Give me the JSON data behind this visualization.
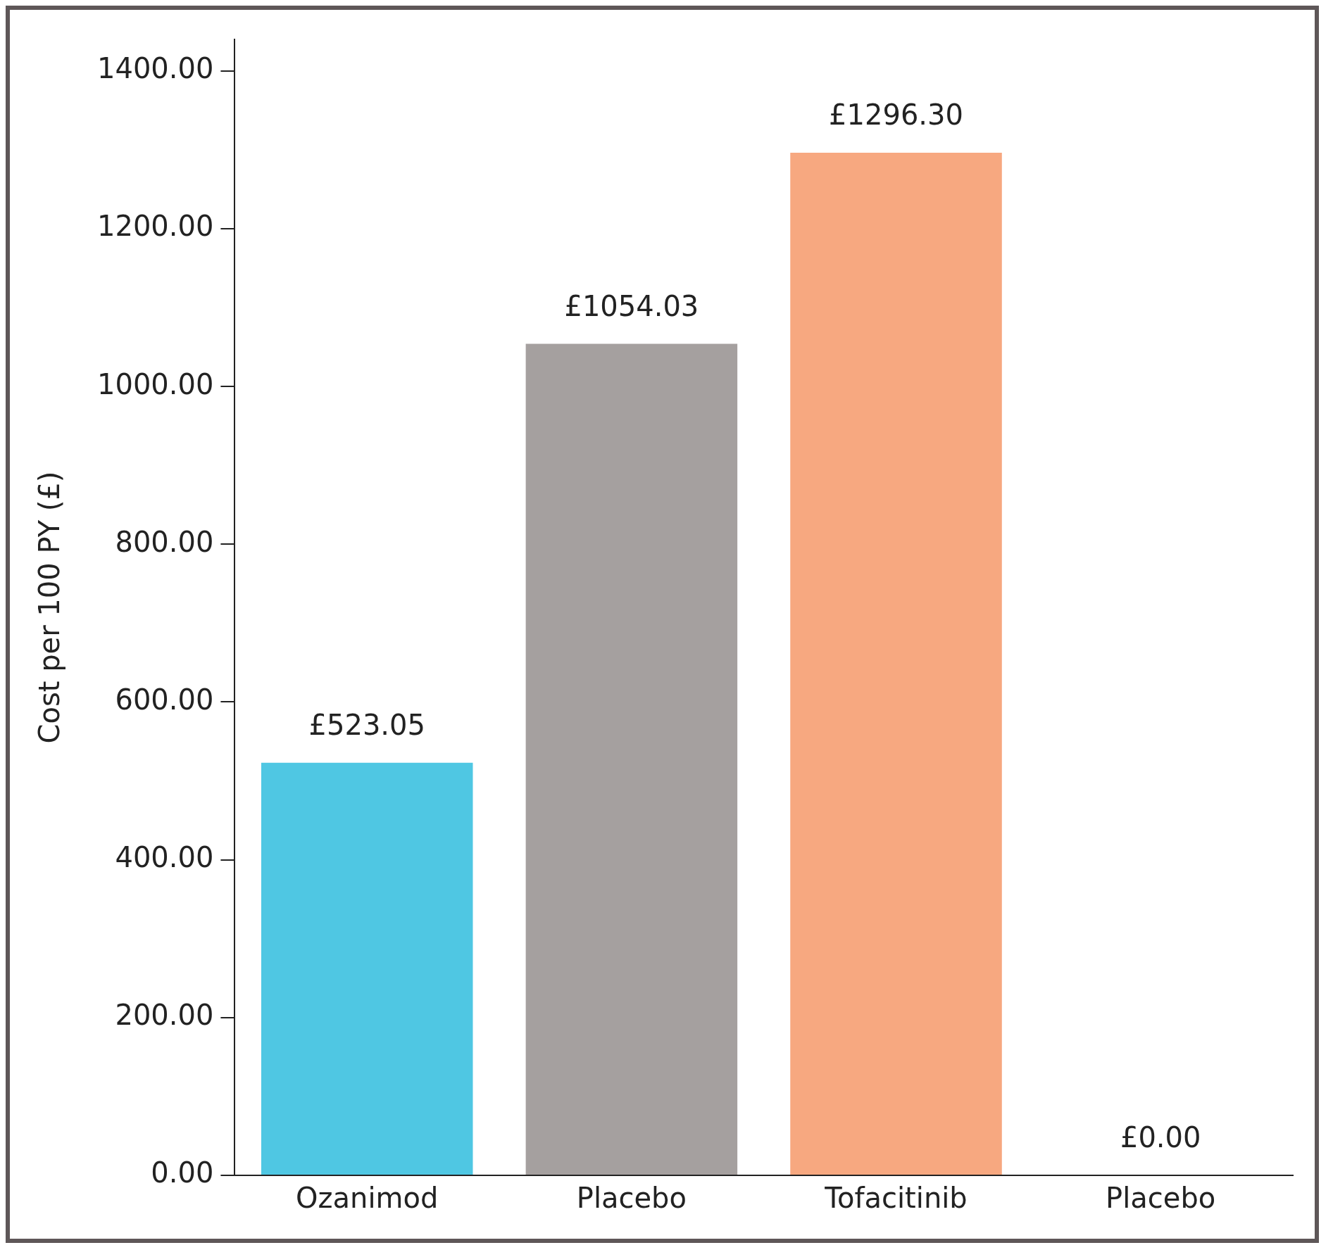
{
  "chart_data": {
    "type": "bar",
    "ylabel": "Cost per 100 PY (£)",
    "categories": [
      "Ozanimod",
      "Placebo",
      "Tofacitinib",
      "Placebo"
    ],
    "values": [
      523.05,
      1054.03,
      1296.3,
      0
    ],
    "colors": [
      "#4fc7e3",
      "#a5a09f",
      "#f7a880",
      "#a5a09f"
    ],
    "value_labels": [
      "£523.05",
      "£1054.03",
      "£1296.30",
      "£0.00"
    ],
    "ylim": [
      0,
      1440
    ],
    "yticks": [
      {
        "value": 0,
        "label": "0.00"
      },
      {
        "value": 200,
        "label": "200.00"
      },
      {
        "value": 400,
        "label": "400.00"
      },
      {
        "value": 600,
        "label": "600.00"
      },
      {
        "value": 800,
        "label": "800.00"
      },
      {
        "value": 1000,
        "label": "1000.00"
      },
      {
        "value": 1200,
        "label": "1200.00"
      },
      {
        "value": 1400,
        "label": "1400.00"
      }
    ],
    "grid": false,
    "legend": false
  }
}
